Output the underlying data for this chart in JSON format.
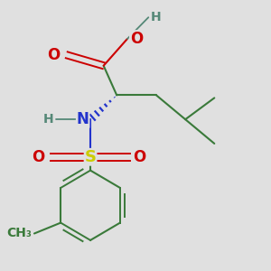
{
  "background_color": "#e0e0e0",
  "colors": {
    "C": "#3a7a3a",
    "O": "#cc0000",
    "N": "#2233cc",
    "S": "#cccc00",
    "H": "#558877",
    "bond": "#3a7a3a"
  },
  "layout": {
    "xlim": [
      0,
      1
    ],
    "ylim": [
      0,
      1
    ],
    "figsize": [
      3.0,
      3.0
    ],
    "dpi": 100
  }
}
